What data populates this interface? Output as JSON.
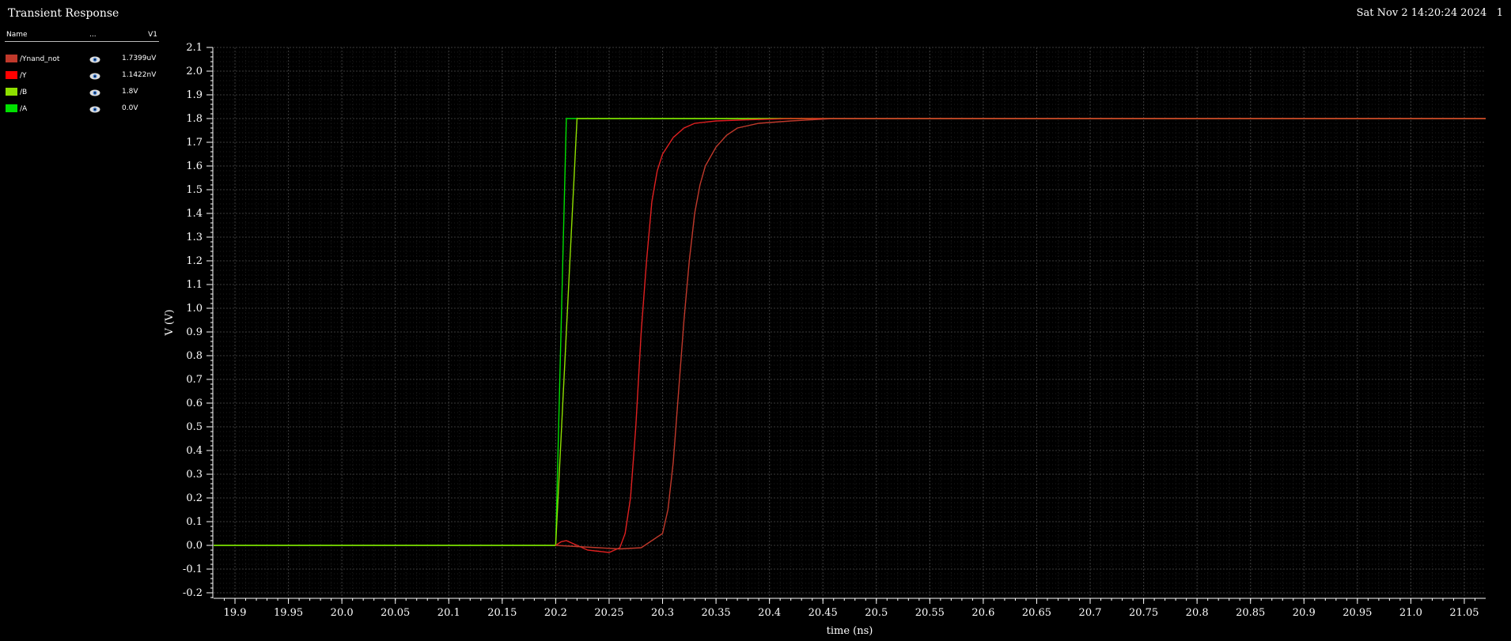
{
  "window": {
    "title": "Transient Response",
    "datestamp": "Sat Nov 2 14:20:24 2024   1"
  },
  "legend": {
    "headers": {
      "name": "Name",
      "dots": "...",
      "value": "V1"
    },
    "items": [
      {
        "name": "/Ynand_not",
        "value": "1.7399uV",
        "color": "#c0392b",
        "icon": "eye-icon"
      },
      {
        "name": "/Y",
        "value": "1.1422nV",
        "color": "#ff0000",
        "icon": "eye-icon"
      },
      {
        "name": "/B",
        "value": "1.8V",
        "color": "#8fe000",
        "icon": "eye-icon"
      },
      {
        "name": "/A",
        "value": "0.0V",
        "color": "#00e000",
        "icon": "eye-icon"
      }
    ]
  },
  "chart_data": {
    "type": "line",
    "xlabel": "time (ns)",
    "ylabel": "V (V)",
    "xlim": [
      19.88,
      21.07
    ],
    "ylim": [
      -0.22,
      2.1
    ],
    "xticks": [
      "19.9",
      "19.95",
      "20.0",
      "20.05",
      "20.1",
      "20.15",
      "20.2",
      "20.25",
      "20.3",
      "20.35",
      "20.4",
      "20.45",
      "20.5",
      "20.55",
      "20.6",
      "20.65",
      "20.7",
      "20.75",
      "20.8",
      "20.85",
      "20.9",
      "20.95",
      "21.0",
      "21.05"
    ],
    "yticks": [
      "-0.2",
      "-0.1",
      "0.0",
      "0.1",
      "0.2",
      "0.3",
      "0.4",
      "0.5",
      "0.6",
      "0.7",
      "0.8",
      "0.9",
      "1.0",
      "1.1",
      "1.2",
      "1.3",
      "1.4",
      "1.5",
      "1.6",
      "1.7",
      "1.8",
      "1.9",
      "2.0",
      "2.1"
    ],
    "grid": true,
    "series": [
      {
        "name": "/A",
        "color": "#00e000",
        "x": [
          19.88,
          20.2,
          20.21,
          21.07
        ],
        "y": [
          0,
          0,
          1.8,
          1.8
        ]
      },
      {
        "name": "/B",
        "color": "#8fe000",
        "x": [
          19.88,
          20.2,
          20.22,
          21.07
        ],
        "y": [
          0,
          0,
          1.8,
          1.8
        ]
      },
      {
        "name": "/Y",
        "color": "#e02020",
        "x": [
          20.2,
          20.205,
          20.21,
          20.22,
          20.23,
          20.24,
          20.25,
          20.26,
          20.265,
          20.27,
          20.275,
          20.28,
          20.285,
          20.29,
          20.295,
          20.3,
          20.31,
          20.32,
          20.33,
          20.35,
          20.38,
          20.42,
          20.47,
          21.07
        ],
        "y": [
          0,
          0.015,
          0.02,
          0.0,
          -0.02,
          -0.025,
          -0.03,
          -0.01,
          0.05,
          0.2,
          0.5,
          0.9,
          1.2,
          1.45,
          1.58,
          1.65,
          1.72,
          1.76,
          1.78,
          1.79,
          1.795,
          1.8,
          1.8,
          1.8
        ]
      },
      {
        "name": "/Ynand_not",
        "color": "#c0392b",
        "x": [
          20.2,
          20.22,
          20.24,
          20.26,
          20.28,
          20.3,
          20.305,
          20.31,
          20.315,
          20.32,
          20.325,
          20.33,
          20.335,
          20.34,
          20.35,
          20.36,
          20.37,
          20.39,
          20.42,
          20.46,
          20.5,
          21.07
        ],
        "y": [
          0,
          -0.005,
          -0.01,
          -0.015,
          -0.01,
          0.05,
          0.15,
          0.35,
          0.65,
          0.95,
          1.2,
          1.4,
          1.52,
          1.6,
          1.68,
          1.73,
          1.76,
          1.78,
          1.79,
          1.8,
          1.8,
          1.8
        ]
      }
    ]
  }
}
